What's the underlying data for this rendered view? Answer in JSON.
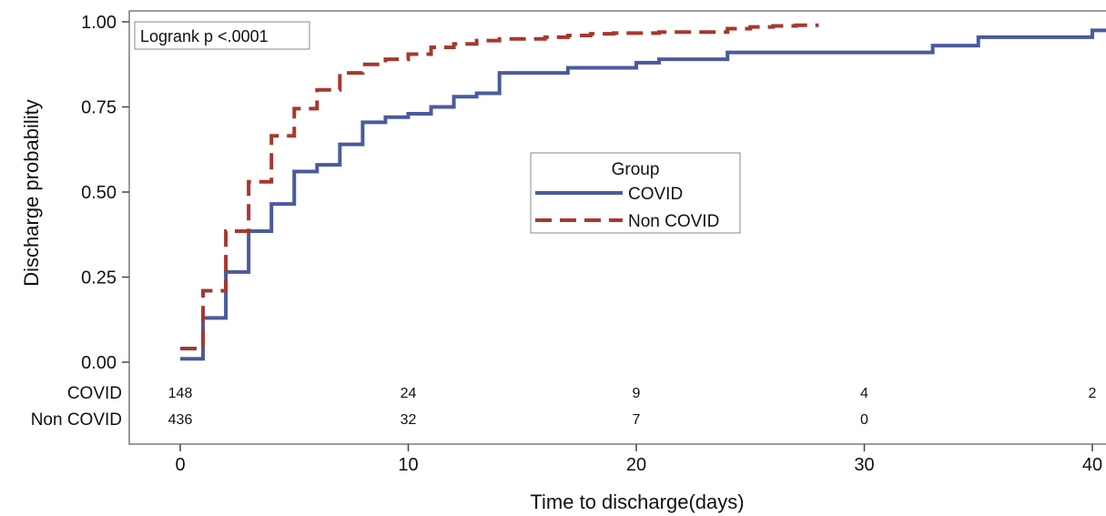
{
  "chart_data": {
    "type": "line",
    "subtype": "kaplan-meier-step",
    "xlabel": "Time to discharge(days)",
    "ylabel": "Discharge probability",
    "xlim": [
      0,
      40
    ],
    "ylim": [
      0,
      1
    ],
    "xticks": [
      "0",
      "10",
      "20",
      "30",
      "40"
    ],
    "yticks": [
      "0.00",
      "0.25",
      "0.50",
      "0.75",
      "1.00"
    ],
    "grid": false,
    "annotation": "Logrank p <.0001",
    "legend": {
      "title": "Group",
      "placement": "center",
      "entries": [
        "COVID",
        "Non COVID"
      ]
    },
    "series": [
      {
        "name": "COVID",
        "color": "#4a5a9c",
        "style": "solid",
        "x": [
          0,
          1,
          2,
          3,
          4,
          5,
          6,
          7,
          8,
          9,
          10,
          11,
          12,
          13,
          14,
          17,
          20,
          21,
          24,
          33,
          35,
          40,
          41
        ],
        "y": [
          0.01,
          0.13,
          0.265,
          0.385,
          0.465,
          0.56,
          0.58,
          0.64,
          0.705,
          0.72,
          0.73,
          0.75,
          0.78,
          0.79,
          0.85,
          0.865,
          0.88,
          0.89,
          0.91,
          0.93,
          0.955,
          0.975,
          0.975
        ]
      },
      {
        "name": "Non COVID",
        "color": "#a5382f",
        "style": "dashed",
        "x": [
          0,
          1,
          2,
          3,
          4,
          5,
          6,
          7,
          8,
          9,
          10,
          11,
          12,
          13,
          14,
          16,
          17,
          18,
          19,
          21,
          24,
          25,
          26,
          27,
          28
        ],
        "y": [
          0.04,
          0.21,
          0.385,
          0.53,
          0.665,
          0.745,
          0.8,
          0.85,
          0.875,
          0.89,
          0.905,
          0.925,
          0.935,
          0.945,
          0.95,
          0.955,
          0.96,
          0.965,
          0.967,
          0.97,
          0.98,
          0.985,
          0.988,
          0.99,
          0.99
        ]
      }
    ],
    "risk_table": {
      "times": [
        0,
        10,
        20,
        30,
        40
      ],
      "rows": [
        {
          "label": "COVID",
          "values": [
            "148",
            "24",
            "9",
            "4",
            "2"
          ]
        },
        {
          "label": "Non COVID",
          "values": [
            "436",
            "32",
            "7",
            "0",
            ""
          ]
        }
      ]
    }
  }
}
